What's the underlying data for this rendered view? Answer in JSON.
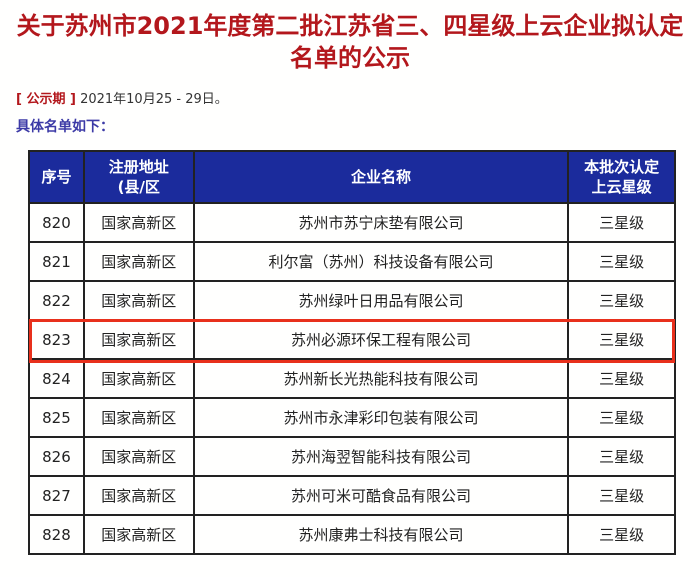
{
  "title_line1": "关于苏州市2021年度第二批江苏省三、四星级上云企业拟认定",
  "title_line2": "名单的公示",
  "period_label": "[ 公示期 ]",
  "period_value": " 2021年10月25 - 29日。",
  "subheading": "具体名单如下：",
  "table": {
    "headers": [
      "序号",
      "注册地址(县/区",
      "企业名称",
      "本批次认定上云星级"
    ],
    "rows": [
      [
        "820",
        "国家高新区",
        "苏州市苏宁床垫有限公司",
        "三星级"
      ],
      [
        "821",
        "国家高新区",
        "利尔富（苏州）科技设备有限公司",
        "三星级"
      ],
      [
        "822",
        "国家高新区",
        "苏州绿叶日用品有限公司",
        "三星级"
      ],
      [
        "823",
        "国家高新区",
        "苏州必源环保工程有限公司",
        "三星级"
      ],
      [
        "824",
        "国家高新区",
        "苏州新长光热能科技有限公司",
        "三星级"
      ],
      [
        "825",
        "国家高新区",
        "苏州市永津彩印包装有限公司",
        "三星级"
      ],
      [
        "826",
        "国家高新区",
        "苏州海翌智能科技有限公司",
        "三星级"
      ],
      [
        "827",
        "国家高新区",
        "苏州可米可酷食品有限公司",
        "三星级"
      ],
      [
        "828",
        "国家高新区",
        "苏州康弗士科技有限公司",
        "三星级"
      ]
    ],
    "highlighted_row": "823"
  },
  "colors": {
    "title": "#b3171c",
    "header_bg": "#1b2b9c",
    "highlight": "#e8301c",
    "subheading": "#3c3aa6"
  }
}
